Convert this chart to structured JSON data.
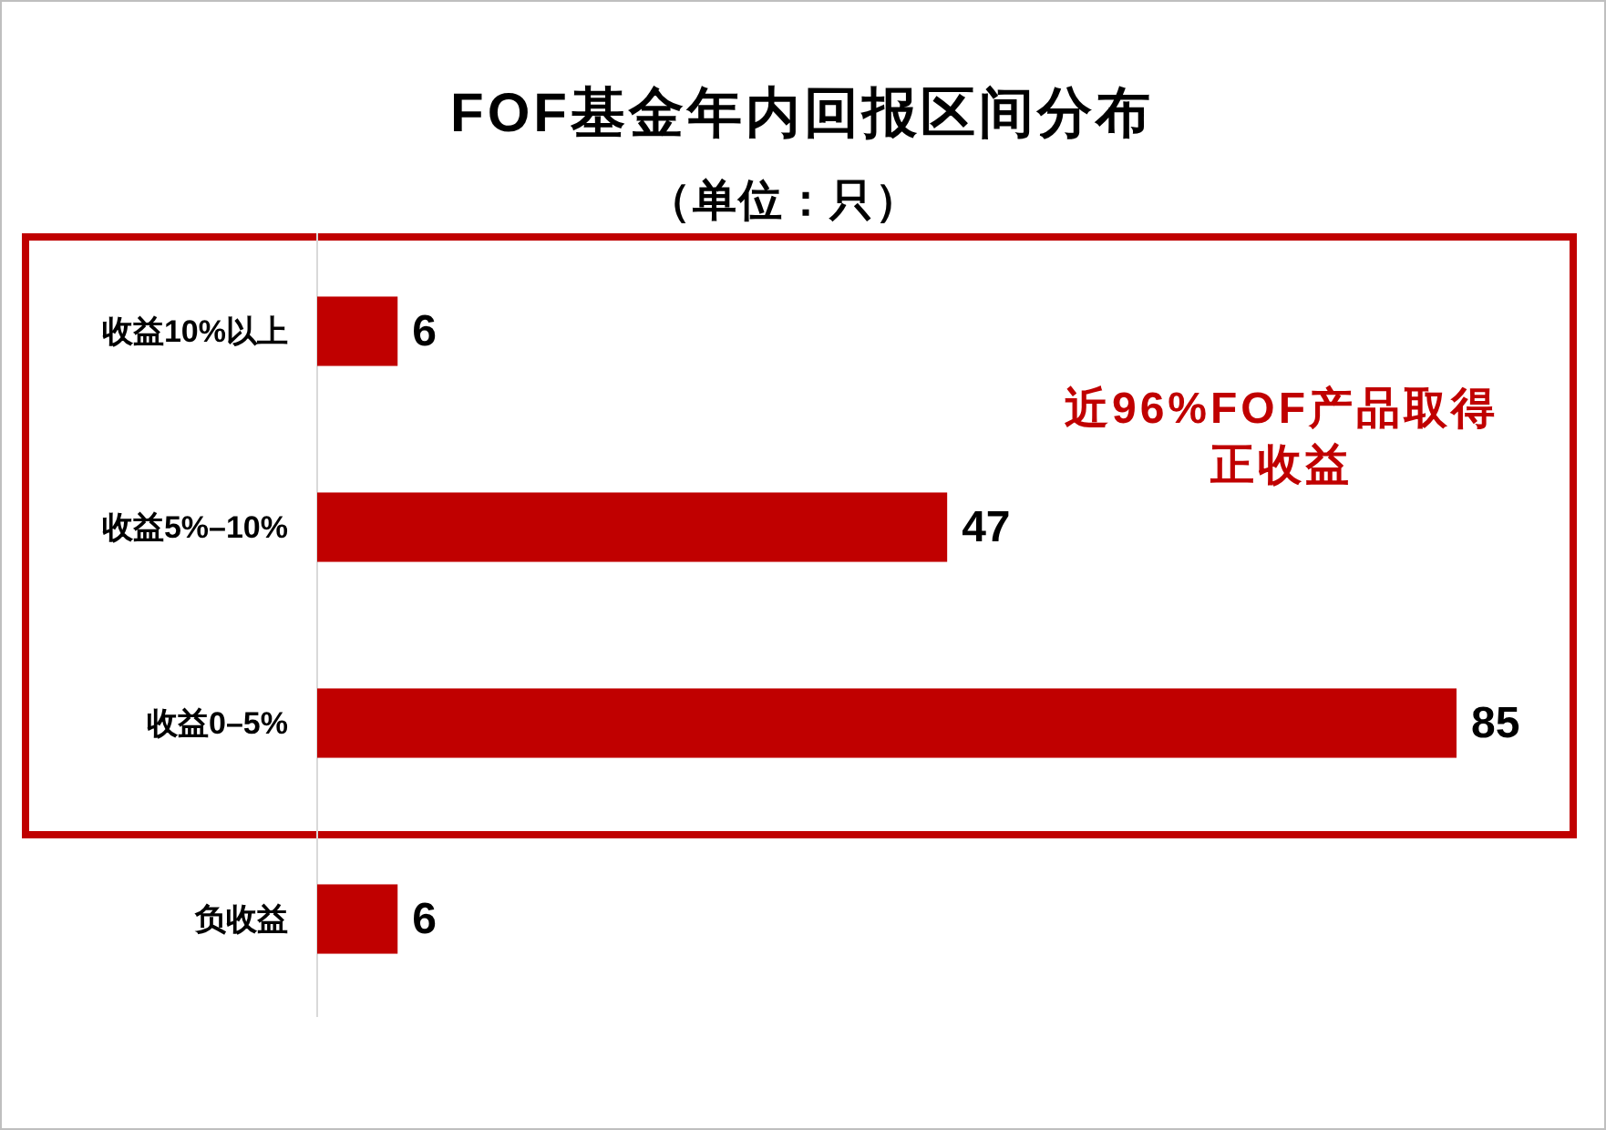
{
  "chart_data": {
    "type": "bar",
    "orientation": "horizontal",
    "title": "FOF基金年内回报区间分布",
    "subtitle": "（单位：只）",
    "categories": [
      "收益10%以上",
      "收益5%–10%",
      "收益0–5%",
      "负收益"
    ],
    "values": [
      6,
      47,
      85,
      6
    ],
    "color": "#c00000",
    "data_labels": true,
    "annotations": [
      "近96%FOF产品取得正收益"
    ]
  }
}
